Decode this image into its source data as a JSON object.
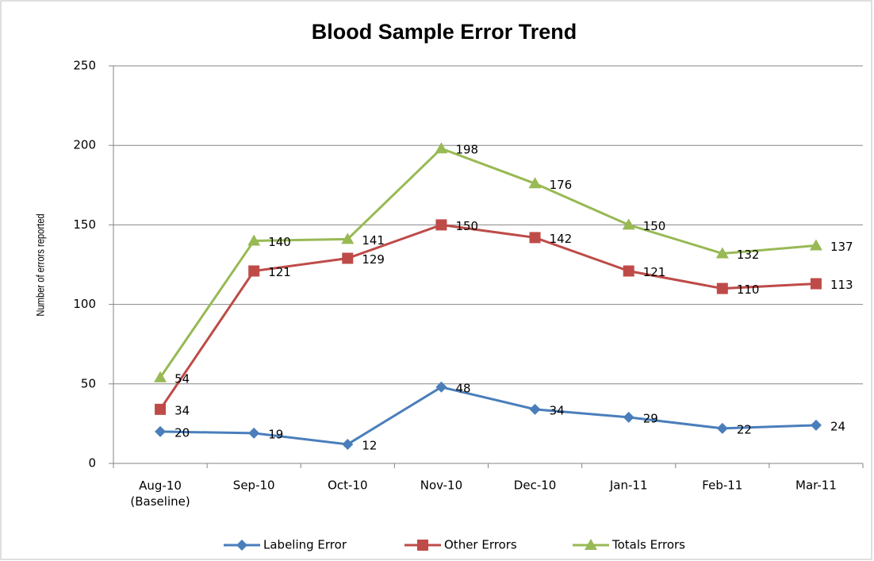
{
  "chart_data": {
    "type": "line",
    "title": "Blood Sample Error Trend",
    "y_label": "Number of errors reported",
    "categories": [
      "Aug-10\n(Baseline)",
      "Sep-10",
      "Oct-10",
      "Nov-10",
      "Dec-10",
      "Jan-11",
      "Feb-11",
      "Mar-11"
    ],
    "series": [
      {
        "name": "Labeling Error",
        "color": "#4a7ebb",
        "marker": "diamond",
        "values": [
          20,
          19,
          12,
          48,
          34,
          29,
          22,
          24
        ]
      },
      {
        "name": "Other Errors",
        "color": "#be4b48",
        "marker": "square",
        "values": [
          34,
          121,
          129,
          150,
          142,
          121,
          110,
          113
        ]
      },
      {
        "name": "Totals Errors",
        "color": "#98b954",
        "marker": "triangle",
        "values": [
          54,
          140,
          141,
          198,
          176,
          150,
          132,
          137
        ]
      }
    ],
    "ylim": [
      0,
      250
    ],
    "yticks": [
      0,
      50,
      100,
      150,
      200,
      250
    ],
    "grid": true,
    "legend": "bottom"
  }
}
